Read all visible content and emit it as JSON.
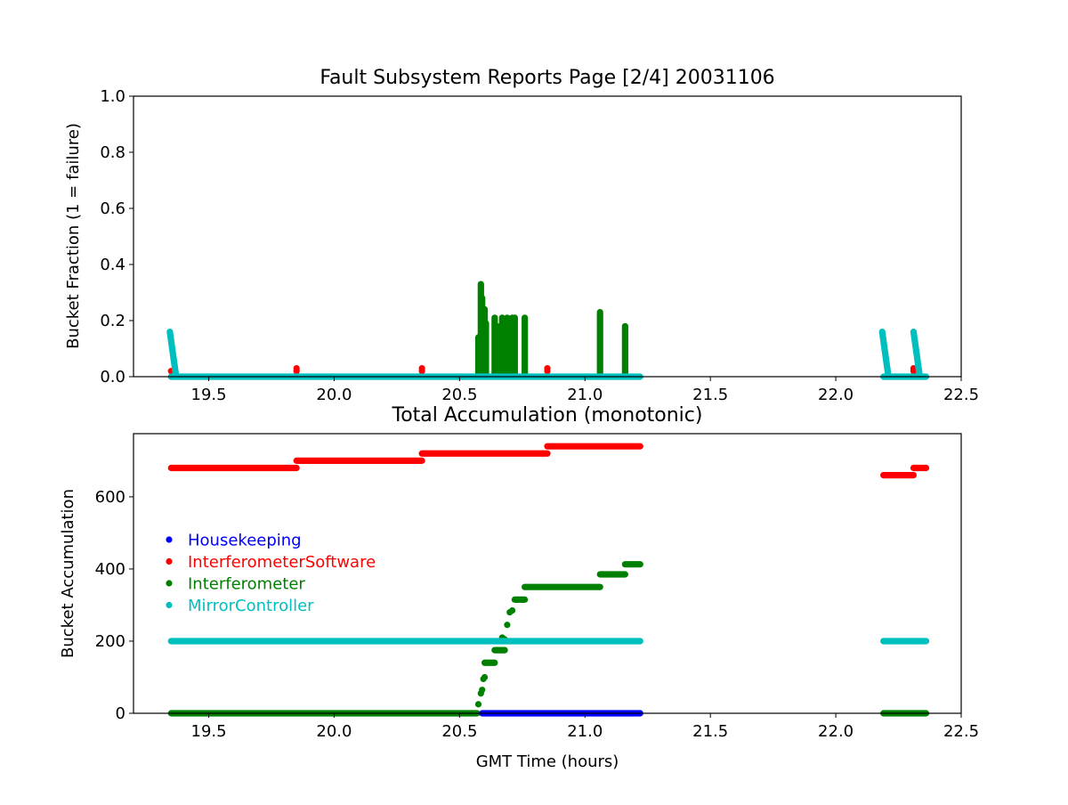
{
  "page": {
    "top_title": "Fault Subsystem Reports Page [2/4] 20031106",
    "bottom_title": "Total Accumulation (monotonic)"
  },
  "chart_data": [
    {
      "type": "scatter",
      "title": "Fault Subsystem Reports Page [2/4] 20031106",
      "xlabel": "",
      "ylabel": "Bucket Fraction (1 = failure)",
      "xlim": [
        19.2,
        22.5
      ],
      "ylim": [
        0,
        1.0
      ],
      "x_ticks": [
        19.5,
        20.0,
        20.5,
        21.0,
        21.5,
        22.0,
        22.5
      ],
      "x_tick_labels": [
        "19.5",
        "20.0",
        "20.5",
        "21.0",
        "21.5",
        "22.0",
        "22.5"
      ],
      "y_ticks": [
        0,
        0.2,
        0.4,
        0.6,
        0.8,
        1.0
      ],
      "y_tick_labels": [
        "0.0",
        "0.2",
        "0.4",
        "0.6",
        "0.8",
        "1.0"
      ],
      "grid": false,
      "series": [
        {
          "name": "InterferometerSoftware",
          "color": "#ff0000",
          "points": [
            [
              19.35,
              0.02
            ],
            [
              19.35,
              0.0
            ],
            [
              19.85,
              0.03
            ],
            [
              19.85,
              0.02
            ],
            [
              20.35,
              0.03
            ],
            [
              20.35,
              0.02
            ],
            [
              20.85,
              0.03
            ],
            [
              20.85,
              0.02
            ],
            [
              22.31,
              0.03
            ],
            [
              22.31,
              0.02
            ]
          ]
        },
        {
          "name": "Interferometer",
          "color": "#008000",
          "spikes": [
            {
              "x": 20.575,
              "top": 0.14
            },
            {
              "x": 20.585,
              "top": 0.33
            },
            {
              "x": 20.59,
              "top": 0.28
            },
            {
              "x": 20.6,
              "top": 0.24
            },
            {
              "x": 20.605,
              "top": 0.19
            },
            {
              "x": 20.64,
              "top": 0.21
            },
            {
              "x": 20.65,
              "top": 0.18
            },
            {
              "x": 20.67,
              "top": 0.21
            },
            {
              "x": 20.68,
              "top": 0.16
            },
            {
              "x": 20.69,
              "top": 0.21
            },
            {
              "x": 20.7,
              "top": 0.18
            },
            {
              "x": 20.71,
              "top": 0.21
            },
            {
              "x": 20.72,
              "top": 0.21
            },
            {
              "x": 20.76,
              "top": 0.21
            },
            {
              "x": 21.06,
              "top": 0.23
            },
            {
              "x": 21.16,
              "top": 0.18
            }
          ]
        },
        {
          "name": "MirrorController",
          "color": "#00bfbf",
          "baseline": [
            [
              19.35,
              21.22
            ],
            [
              22.19,
              22.36
            ]
          ],
          "decays": [
            {
              "x0": 19.345,
              "x1": 19.37,
              "top": 0.16
            },
            {
              "x0": 22.185,
              "x1": 22.21,
              "top": 0.16
            },
            {
              "x0": 22.31,
              "x1": 22.335,
              "top": 0.16
            }
          ]
        }
      ]
    },
    {
      "type": "scatter",
      "title": "Total Accumulation (monotonic)",
      "xlabel": "GMT Time (hours)",
      "ylabel": "Bucket Accumulation",
      "xlim": [
        19.2,
        22.5
      ],
      "ylim": [
        0,
        775
      ],
      "x_ticks": [
        19.5,
        20.0,
        20.5,
        21.0,
        21.5,
        22.0,
        22.5
      ],
      "x_tick_labels": [
        "19.5",
        "20.0",
        "20.5",
        "21.0",
        "21.5",
        "22.0",
        "22.5"
      ],
      "y_ticks": [
        0,
        200,
        400,
        600
      ],
      "y_tick_labels": [
        "0",
        "200",
        "400",
        "600"
      ],
      "grid": false,
      "legend_position": "center-left",
      "series": [
        {
          "name": "Housekeeping",
          "color": "#0000ff",
          "segments": [
            {
              "x0": 20.59,
              "x1": 21.22,
              "y": 0
            }
          ]
        },
        {
          "name": "InterferometerSoftware",
          "color": "#ff0000",
          "segments": [
            {
              "x0": 19.35,
              "x1": 19.85,
              "y": 680
            },
            {
              "x0": 19.85,
              "x1": 20.35,
              "y": 700
            },
            {
              "x0": 20.35,
              "x1": 20.85,
              "y": 720
            },
            {
              "x0": 20.85,
              "x1": 21.22,
              "y": 740
            },
            {
              "x0": 22.19,
              "x1": 22.31,
              "y": 660
            },
            {
              "x0": 22.31,
              "x1": 22.36,
              "y": 680
            }
          ]
        },
        {
          "name": "Interferometer",
          "color": "#008000",
          "segments": [
            {
              "x0": 19.35,
              "x1": 20.57,
              "y": 0
            },
            {
              "x0": 20.6,
              "x1": 20.64,
              "y": 140
            },
            {
              "x0": 20.64,
              "x1": 20.68,
              "y": 175
            },
            {
              "x0": 20.72,
              "x1": 20.76,
              "y": 315
            },
            {
              "x0": 20.76,
              "x1": 21.06,
              "y": 350
            },
            {
              "x0": 21.06,
              "x1": 21.16,
              "y": 385
            },
            {
              "x0": 21.16,
              "x1": 21.22,
              "y": 413
            },
            {
              "x0": 22.19,
              "x1": 22.31,
              "y": 0
            },
            {
              "x0": 22.31,
              "x1": 22.36,
              "y": 0
            }
          ],
          "points": [
            [
              20.575,
              25
            ],
            [
              20.585,
              55
            ],
            [
              20.59,
              65
            ],
            [
              20.595,
              95
            ],
            [
              20.6,
              100
            ],
            [
              20.67,
              210
            ],
            [
              20.68,
              205
            ],
            [
              20.69,
              245
            ],
            [
              20.7,
              280
            ],
            [
              20.71,
              285
            ]
          ]
        },
        {
          "name": "MirrorController",
          "color": "#00bfbf",
          "segments": [
            {
              "x0": 19.35,
              "x1": 21.22,
              "y": 200
            },
            {
              "x0": 22.19,
              "x1": 22.31,
              "y": 200
            },
            {
              "x0": 22.31,
              "x1": 22.36,
              "y": 200
            }
          ]
        }
      ]
    }
  ]
}
